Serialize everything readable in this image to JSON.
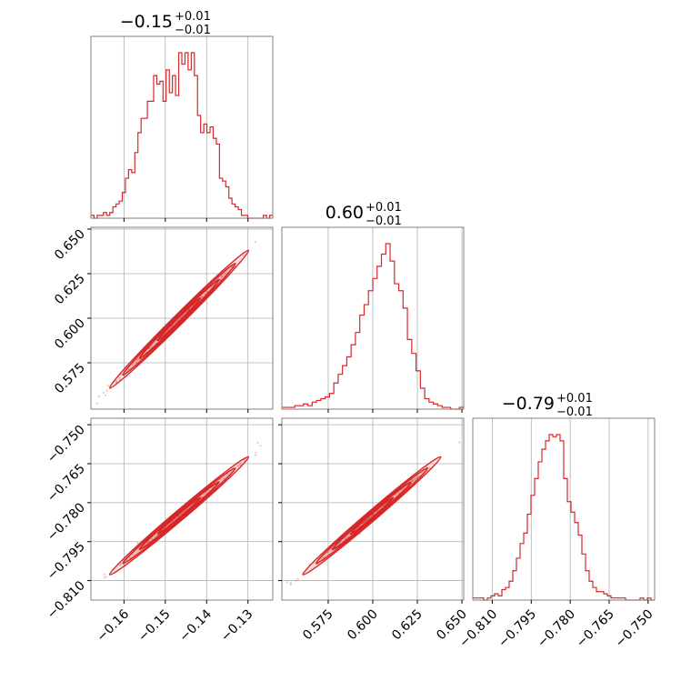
{
  "chart_data": {
    "type": "corner",
    "color": "#d62728",
    "grid": true,
    "parameters": [
      {
        "title_value": "−0.15",
        "title_plus": "+0.01",
        "title_minus": "−0.01",
        "range": [
          -0.168,
          -0.124
        ],
        "ticks": [
          -0.16,
          -0.15,
          -0.14,
          -0.13
        ],
        "tick_labels": [
          "−0.16",
          "−0.15",
          "−0.14",
          "−0.13"
        ]
      },
      {
        "title_value": "0.60",
        "title_plus": "+0.01",
        "title_minus": "−0.01",
        "range": [
          0.549,
          0.651
        ],
        "ticks": [
          0.575,
          0.6,
          0.625,
          0.65
        ],
        "tick_labels": [
          "0.575",
          "0.600",
          "0.625",
          "0.650"
        ]
      },
      {
        "title_value": "−0.79",
        "title_plus": "+0.01",
        "title_minus": "−0.01",
        "range": [
          -0.8175,
          -0.7475
        ],
        "ticks": [
          -0.81,
          -0.795,
          -0.78,
          -0.765,
          -0.75
        ],
        "tick_labels": [
          "−0.810",
          "−0.795",
          "−0.780",
          "−0.765",
          "−0.750"
        ]
      }
    ],
    "histograms": [
      {
        "bins": [
          -0.168,
          -0.124
        ],
        "counts": [
          1,
          0,
          1,
          1,
          2,
          1,
          2,
          4,
          5,
          6,
          9,
          14,
          17,
          16,
          23,
          30,
          35,
          35,
          41,
          41,
          50,
          47,
          48,
          41,
          52,
          44,
          50,
          43,
          58,
          54,
          58,
          52,
          58,
          50,
          36,
          30,
          33,
          30,
          32,
          28,
          26,
          14,
          13,
          11,
          7,
          5,
          4,
          3,
          1,
          1,
          0,
          0,
          0,
          0,
          0,
          1,
          0,
          1
        ]
      },
      {
        "bins": [
          0.549,
          0.651
        ],
        "counts": [
          1,
          1,
          1,
          2,
          2,
          3,
          2,
          4,
          5,
          6,
          7,
          9,
          15,
          20,
          25,
          30,
          37,
          44,
          54,
          60,
          68,
          75,
          82,
          89,
          95,
          85,
          72,
          68,
          58,
          40,
          32,
          22,
          12,
          6,
          4,
          3,
          2,
          1,
          1,
          0,
          0,
          1
        ]
      },
      {
        "bins": [
          -0.8175,
          -0.7475
        ],
        "counts": [
          1,
          1,
          1,
          0,
          1,
          2,
          3,
          2,
          5,
          6,
          9,
          14,
          20,
          27,
          32,
          41,
          50,
          58,
          66,
          72,
          76,
          79,
          78,
          79,
          76,
          58,
          47,
          42,
          37,
          31,
          22,
          14,
          9,
          6,
          4,
          4,
          3,
          2,
          1,
          1,
          1,
          1,
          0,
          0,
          0,
          0,
          1,
          0,
          1,
          0
        ]
      }
    ],
    "joint_correlation": [
      {
        "x_param": 0,
        "y_param": 1,
        "x_range": [
          -0.166,
          -0.126
        ],
        "y_range": [
          0.555,
          0.647
        ]
      },
      {
        "x_param": 0,
        "y_param": 2,
        "x_range": [
          -0.166,
          -0.126
        ],
        "y_range": [
          -0.811,
          -0.757
        ]
      },
      {
        "x_param": 1,
        "y_param": 2,
        "x_range": [
          0.555,
          0.647
        ],
        "y_range": [
          -0.811,
          -0.757
        ]
      }
    ]
  }
}
